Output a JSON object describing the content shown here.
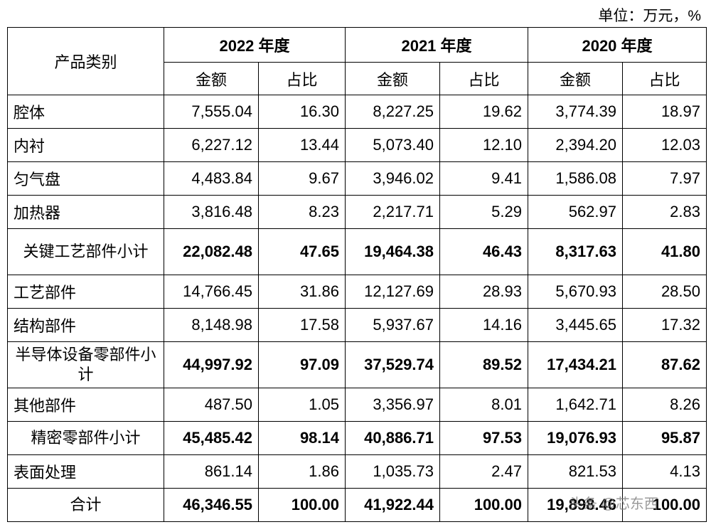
{
  "unit": "单位：万元，%",
  "table": {
    "header": {
      "category": "产品类别",
      "years": [
        "2022 年度",
        "2021 年度",
        "2020 年度"
      ],
      "subheaders": [
        "金额",
        "占比",
        "金额",
        "占比",
        "金额",
        "占比"
      ]
    },
    "rows": [
      {
        "label": "腔体",
        "bold": false,
        "cells": [
          "7,555.04",
          "16.30",
          "8,227.25",
          "19.62",
          "3,774.39",
          "18.97"
        ]
      },
      {
        "label": "内衬",
        "bold": false,
        "cells": [
          "6,227.12",
          "13.44",
          "5,073.40",
          "12.10",
          "2,394.20",
          "12.03"
        ]
      },
      {
        "label": "匀气盘",
        "bold": false,
        "cells": [
          "4,483.84",
          "9.67",
          "3,946.02",
          "9.41",
          "1,586.08",
          "7.97"
        ]
      },
      {
        "label": "加热器",
        "bold": false,
        "cells": [
          "3,816.48",
          "8.23",
          "2,217.71",
          "5.29",
          "562.97",
          "2.83"
        ]
      },
      {
        "label": "关键工艺部件小计",
        "bold": true,
        "cells": [
          "22,082.48",
          "47.65",
          "19,464.38",
          "46.43",
          "8,317.63",
          "41.80"
        ]
      },
      {
        "label": "工艺部件",
        "bold": false,
        "cells": [
          "14,766.45",
          "31.86",
          "12,127.69",
          "28.93",
          "5,670.93",
          "28.50"
        ]
      },
      {
        "label": "结构部件",
        "bold": false,
        "cells": [
          "8,148.98",
          "17.58",
          "5,937.67",
          "14.16",
          "3,445.65",
          "17.32"
        ]
      },
      {
        "label": "半导体设备零部件小计",
        "bold": true,
        "cells": [
          "44,997.92",
          "97.09",
          "37,529.74",
          "89.52",
          "17,434.21",
          "87.62"
        ]
      },
      {
        "label": "其他部件",
        "bold": false,
        "cells": [
          "487.50",
          "1.05",
          "3,356.97",
          "8.01",
          "1,642.71",
          "8.26"
        ]
      },
      {
        "label": "精密零部件小计",
        "bold": true,
        "cells": [
          "45,485.42",
          "98.14",
          "40,886.71",
          "97.53",
          "19,076.93",
          "95.87"
        ]
      },
      {
        "label": "表面处理",
        "bold": false,
        "cells": [
          "861.14",
          "1.86",
          "1,035.73",
          "2.47",
          "821.53",
          "4.13"
        ]
      },
      {
        "label": "合计",
        "bold": true,
        "cells": [
          "46,346.55",
          "100.00",
          "41,922.44",
          "100.00",
          "19,898.46",
          "100.00"
        ]
      }
    ]
  },
  "watermark": "头条 @芯东西"
}
